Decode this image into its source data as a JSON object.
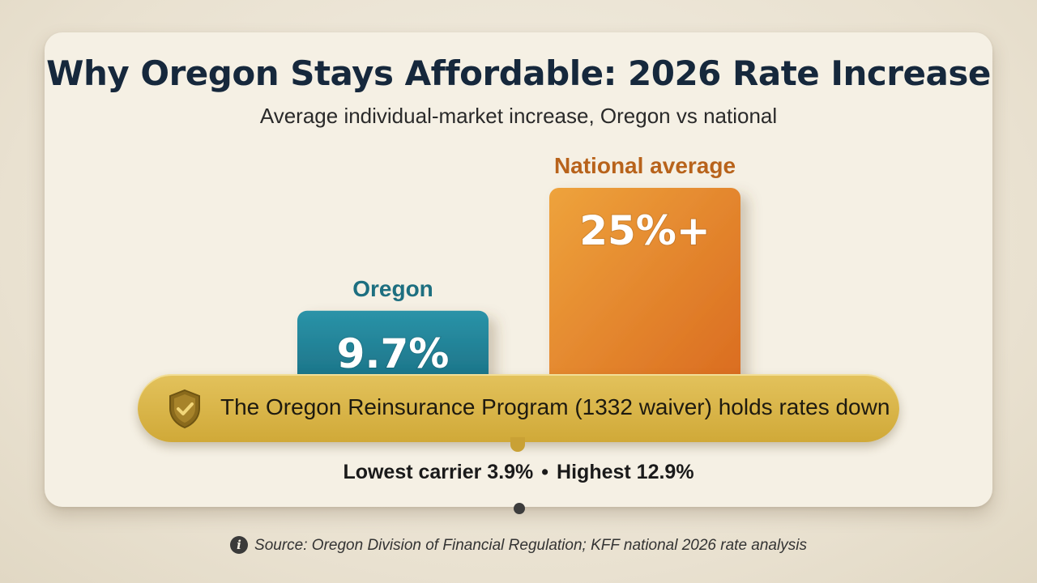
{
  "chart_data": {
    "type": "bar",
    "title": "Why Oregon Stays Affordable: 2026 Rate Increase",
    "subtitle": "Average individual-market increase, Oregon vs national",
    "categories": [
      "Oregon",
      "National average"
    ],
    "values": [
      9.7,
      25
    ],
    "value_labels": [
      "9.7%",
      "25%+"
    ],
    "colors": [
      "#1f7f92",
      "#e58a2c"
    ],
    "label_colors": [
      "#1d6f80",
      "#b8631b"
    ],
    "ylim": [
      0,
      25
    ],
    "grid": false,
    "legend": "none"
  },
  "callout": {
    "text": "The Oregon Reinsurance Program (1332 waiver) holds rates down",
    "icon": "shield-check-icon"
  },
  "range": {
    "low": "Lowest carrier 3.9%",
    "separator": "•",
    "high": "Highest 12.9%"
  },
  "source": {
    "icon": "info-icon",
    "text": "Source: Oregon Division of Financial Regulation; KFF national 2026 rate analysis"
  }
}
